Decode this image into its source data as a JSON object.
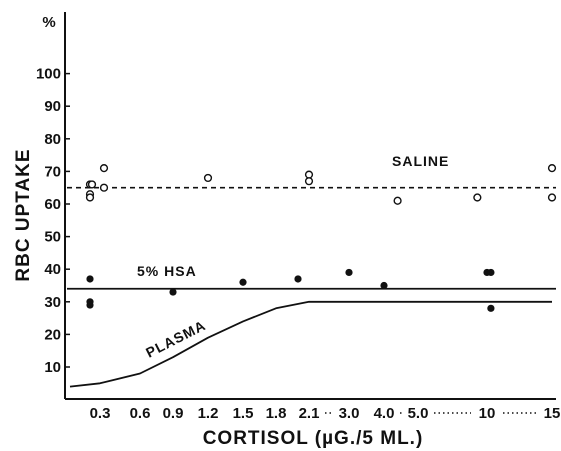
{
  "chart_data": {
    "type": "scatter",
    "title": "",
    "xlabel": "CORTISOL (µG./5 ML.)",
    "ylabel": "RBC UPTAKE",
    "y_unit": "%",
    "x_scale": "categorical (unevenly spaced)",
    "x_ticks": [
      "0.3",
      "0.6",
      "0.9",
      "1.2",
      "1.5",
      "1.8",
      "2.1",
      "3.0",
      "4.0",
      "5.0",
      "10",
      "15"
    ],
    "y_ticks": [
      10,
      20,
      30,
      40,
      50,
      60,
      70,
      80,
      90,
      100
    ],
    "ylim": [
      3,
      108
    ],
    "grid": false,
    "legend": "none (series labeled inline on lines)",
    "series": [
      {
        "name": "SALINE",
        "marker": "open-circle",
        "line_style": "dashed",
        "line_value": 65,
        "points": [
          {
            "x": 0.2,
            "y": 66
          },
          {
            "x": 0.22,
            "y": 66
          },
          {
            "x": 0.2,
            "y": 63
          },
          {
            "x": 0.2,
            "y": 62
          },
          {
            "x": 0.33,
            "y": 71
          },
          {
            "x": 0.33,
            "y": 65
          },
          {
            "x": 1.2,
            "y": 68
          },
          {
            "x": 2.1,
            "y": 69
          },
          {
            "x": 2.1,
            "y": 67
          },
          {
            "x": 4.4,
            "y": 61
          },
          {
            "x": 9.3,
            "y": 62
          },
          {
            "x": 15,
            "y": 71
          },
          {
            "x": 15,
            "y": 62
          }
        ]
      },
      {
        "name": "5% HSA",
        "marker": "filled-circle",
        "line_style": "solid",
        "line_value": 34,
        "points": [
          {
            "x": 0.2,
            "y": 37
          },
          {
            "x": 0.2,
            "y": 30
          },
          {
            "x": 0.2,
            "y": 29
          },
          {
            "x": 0.9,
            "y": 33
          },
          {
            "x": 1.5,
            "y": 36
          },
          {
            "x": 2.0,
            "y": 37
          },
          {
            "x": 3.0,
            "y": 39
          },
          {
            "x": 4.0,
            "y": 35
          },
          {
            "x": 10,
            "y": 39
          },
          {
            "x": 10.3,
            "y": 39
          },
          {
            "x": 10.3,
            "y": 28
          }
        ]
      },
      {
        "name": "PLASMA",
        "marker": "none",
        "line_style": "solid",
        "curve": [
          {
            "x": 0.0,
            "y": 4
          },
          {
            "x": 0.3,
            "y": 5
          },
          {
            "x": 0.6,
            "y": 8
          },
          {
            "x": 0.9,
            "y": 13
          },
          {
            "x": 1.2,
            "y": 19
          },
          {
            "x": 1.5,
            "y": 24
          },
          {
            "x": 1.8,
            "y": 28
          },
          {
            "x": 2.1,
            "y": 30
          },
          {
            "x": 3.0,
            "y": 30
          },
          {
            "x": 15,
            "y": 30
          }
        ]
      }
    ]
  }
}
